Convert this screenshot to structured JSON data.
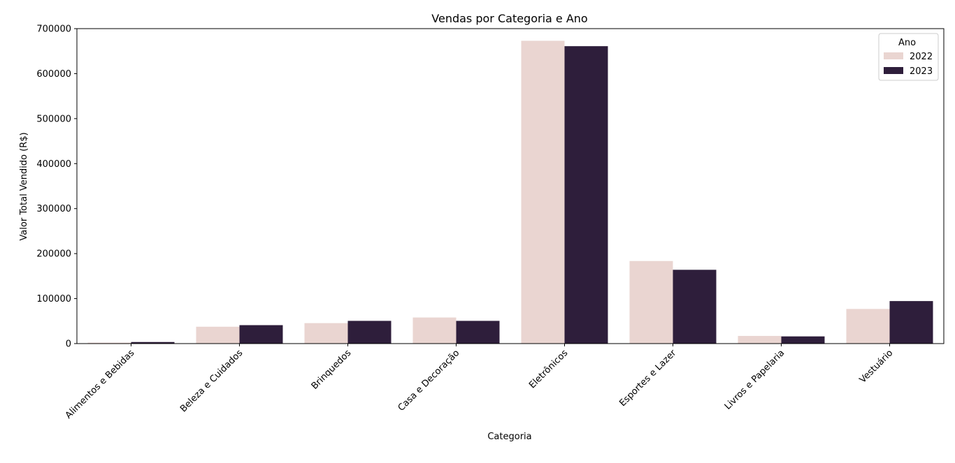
{
  "chart_data": {
    "type": "bar",
    "title": "Vendas por Categoria e Ano",
    "xlabel": "Categoria",
    "ylabel": "Valor Total Vendido (R$)",
    "ylim": [
      0,
      700000
    ],
    "yticks": [
      "0",
      "100000",
      "200000",
      "300000",
      "400000",
      "500000",
      "600000",
      "700000"
    ],
    "grid": false,
    "categories": [
      "Alimentos e Bebidas",
      "Beleza e Cuidados",
      "Brinquedos",
      "Casa e Decoração",
      "Eletrônicos",
      "Esportes e Lazer",
      "Livros e Papelaria",
      "Vestuário"
    ],
    "series": [
      {
        "name": "2022",
        "color": "#ead5d1",
        "values": [
          2000,
          37500,
          45500,
          58000,
          673000,
          183500,
          17000,
          77000
        ]
      },
      {
        "name": "2023",
        "color": "#2e1e3b",
        "values": [
          3500,
          41000,
          50500,
          50500,
          661000,
          164000,
          16000,
          94500
        ]
      }
    ],
    "legend": {
      "title": "Ano",
      "position": "top-right"
    }
  }
}
